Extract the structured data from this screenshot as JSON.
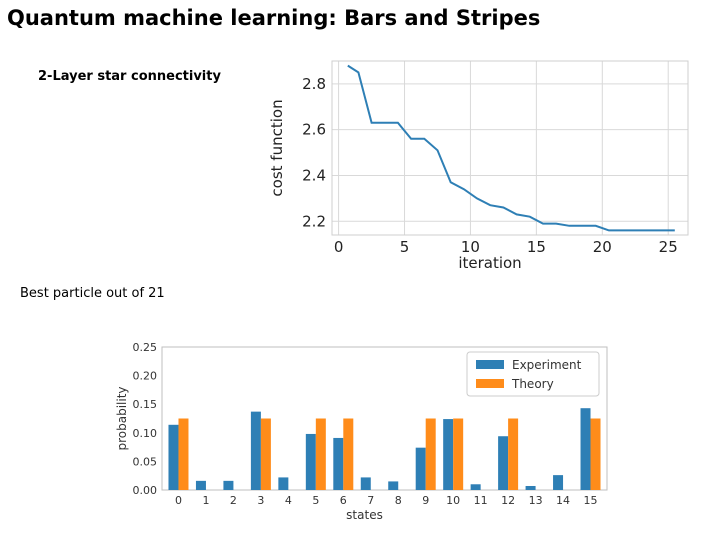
{
  "slide": {
    "title": "Quantum machine learning: Bars and Stripes",
    "subtitle": "2-Layer star connectivity",
    "caption": "Best particle out of 21"
  },
  "colors": {
    "line": "#2e7fb5",
    "experiment": "#2e7fb5",
    "theory": "#ff8c1a",
    "grid": "#d9d9d9"
  },
  "chart_data": [
    {
      "type": "line",
      "xlabel": "iteration",
      "ylabel": "cost function",
      "xlim": [
        -0.5,
        26.5
      ],
      "ylim": [
        2.14,
        2.9
      ],
      "xticks": [
        0,
        5,
        10,
        15,
        20,
        25
      ],
      "yticks": [
        2.2,
        2.4,
        2.6,
        2.8
      ],
      "ytick_labels": [
        "2.2",
        "2.4",
        "2.6",
        "2.8"
      ],
      "grid": true,
      "series": [
        {
          "x": [
            0.7,
            1.5,
            2.5,
            3.5,
            4.5,
            5.5,
            6.5,
            7.5,
            8.5,
            9.5,
            10.5,
            11.5,
            12.5,
            13.5,
            14.5,
            15.5,
            16.5,
            17.5,
            18.5,
            19.5,
            20.5,
            21.5,
            22.5,
            23.5,
            24.5,
            25.5
          ],
          "y": [
            2.88,
            2.85,
            2.63,
            2.63,
            2.63,
            2.56,
            2.56,
            2.51,
            2.37,
            2.34,
            2.3,
            2.27,
            2.26,
            2.23,
            2.22,
            2.19,
            2.19,
            2.18,
            2.18,
            2.18,
            2.16,
            2.16,
            2.16,
            2.16,
            2.16,
            2.16
          ]
        }
      ]
    },
    {
      "type": "bar",
      "xlabel": "states",
      "ylabel": "probability",
      "categories": [
        "0",
        "1",
        "2",
        "3",
        "4",
        "5",
        "6",
        "7",
        "8",
        "9",
        "10",
        "11",
        "12",
        "13",
        "14",
        "15"
      ],
      "ylim": [
        0,
        0.25
      ],
      "yticks": [
        "0.00",
        "0.05",
        "0.10",
        "0.15",
        "0.20",
        "0.25"
      ],
      "legend_position": "top-right",
      "series": [
        {
          "name": "Experiment",
          "values": [
            0.114,
            0.016,
            0.016,
            0.137,
            0.022,
            0.098,
            0.091,
            0.022,
            0.015,
            0.074,
            0.124,
            0.01,
            0.094,
            0.007,
            0.026,
            0.143
          ]
        },
        {
          "name": "Theory",
          "values": [
            0.125,
            0,
            0,
            0.125,
            0,
            0.125,
            0.125,
            0,
            0,
            0.125,
            0.125,
            0,
            0.125,
            0,
            0,
            0.125
          ]
        }
      ]
    }
  ]
}
